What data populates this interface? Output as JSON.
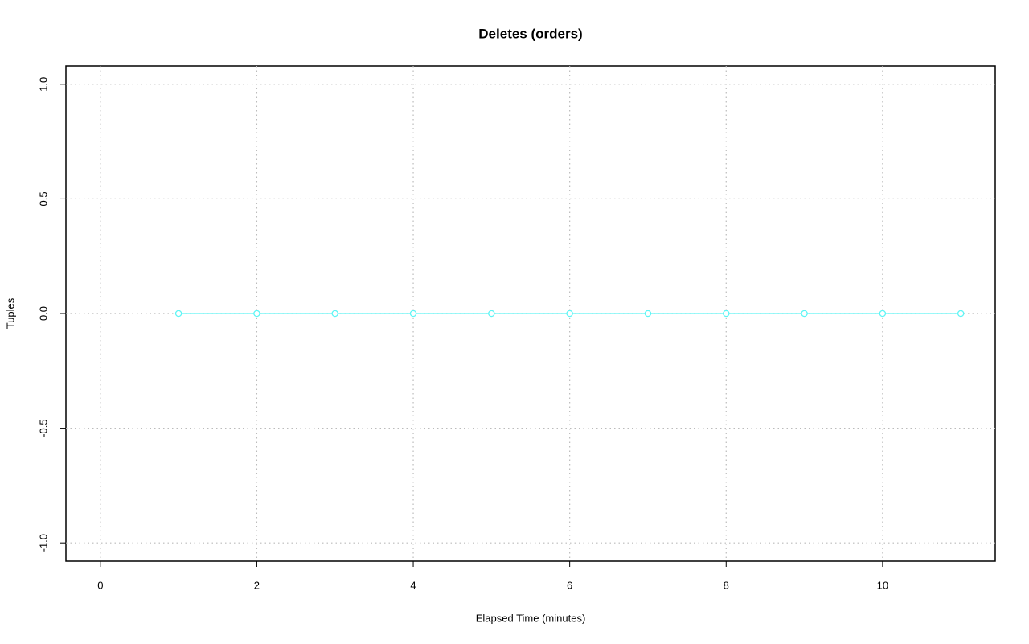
{
  "chart_data": {
    "type": "line",
    "title": "Deletes (orders)",
    "x_label": "Elapsed Time (minutes)",
    "y_label": "Tuples",
    "x": [
      1,
      2,
      3,
      4,
      5,
      6,
      7,
      8,
      9,
      10,
      11
    ],
    "series": [
      {
        "color": "#5ff5f5",
        "values": [
          0,
          0,
          0,
          0,
          0,
          0,
          0,
          0,
          0,
          0,
          0
        ]
      }
    ],
    "xlim": [
      -0.44,
      11.44
    ],
    "ylim": [
      -1.08,
      1.08
    ],
    "xticks": [
      0,
      2,
      4,
      6,
      8,
      10
    ],
    "yticks": [
      {
        "value": -1,
        "label": "-1.0"
      },
      {
        "value": -0.5,
        "label": "-0.5"
      },
      {
        "value": 0,
        "label": "0.0"
      },
      {
        "value": 0.5,
        "label": "0.5"
      },
      {
        "value": 1,
        "label": "1.0"
      }
    ],
    "grid": true
  }
}
